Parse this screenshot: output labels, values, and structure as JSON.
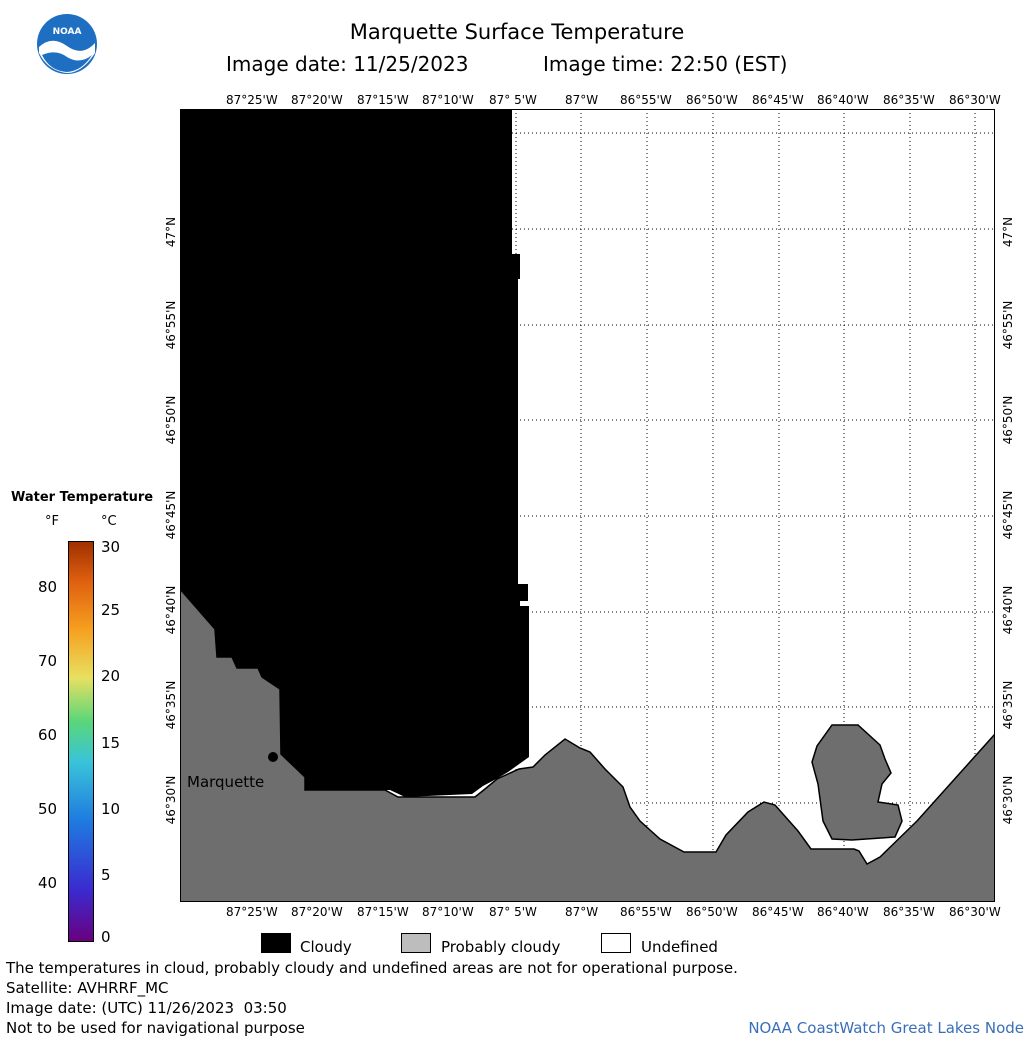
{
  "header": {
    "title": "Marquette Surface Temperature",
    "image_date_label": "Image date: 11/25/2023",
    "image_time_label": "Image time: 22:50 (EST)"
  },
  "logo": {
    "text": "NOAA"
  },
  "colorbar": {
    "title": "Water Temperature",
    "unit_f": "°F",
    "unit_c": "°C",
    "f_ticks": [
      "80",
      "70",
      "60",
      "50",
      "40"
    ],
    "c_ticks": [
      "30",
      "25",
      "20",
      "15",
      "10",
      "5",
      "0"
    ],
    "gradient_colors": [
      "#6a0080",
      "#3a2bd0",
      "#1f7ae0",
      "#39c4d8",
      "#5ad67a",
      "#e8e060",
      "#f6a020",
      "#e06010",
      "#a03000"
    ]
  },
  "map": {
    "lon_labels": [
      "87°25'W",
      "87°20'W",
      "87°15'W",
      "87°10'W",
      "87° 5'W",
      "87°W",
      "86°55'W",
      "86°50'W",
      "86°45'W",
      "86°40'W",
      "86°35'W",
      "86°30'W"
    ],
    "lat_labels": [
      "47°N",
      "46°55'N",
      "46°50'N",
      "46°45'N",
      "46°40'N",
      "46°35'N",
      "46°30'N"
    ],
    "city_label": "Marquette",
    "colors": {
      "cloudy": "#000000",
      "probably_cloudy": "#6e6e6e",
      "undefined": "#ffffff"
    }
  },
  "legend": {
    "cloudy": "Cloudy",
    "probably_cloudy": "Probably cloudy",
    "undefined": "Undefined"
  },
  "footer": {
    "note": "The temperatures in cloud, probably cloudy and undefined areas are not for operational purpose.",
    "satellite": "Satellite: AVHRRF_MC",
    "utc_date": "Image date: (UTC) 11/26/2023  03:50",
    "nav_warning": "Not to be used for navigational purpose",
    "credit": "NOAA CoastWatch Great Lakes Node"
  }
}
